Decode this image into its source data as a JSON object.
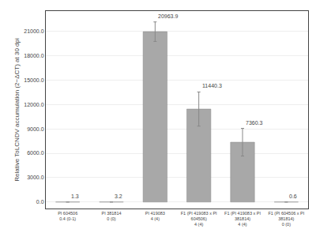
{
  "chart_data": {
    "type": "bar",
    "categories": [
      "PI 604506\n0.4 (0-1)",
      "PI 381814\n0 (0)",
      "PI 419083\n4 (4)",
      "F1 (PI 419083 x PI\n604506)\n4 (4)",
      "F1 (PI 419083 x PI\n381814)\n4 (4)",
      "F1 (PI 604506 x PI\n381814)\n0 (0)"
    ],
    "values": [
      1.3,
      3.2,
      20963.9,
      11440.3,
      7360.3,
      0.6
    ],
    "errors": [
      0.3,
      0.8,
      1200.0,
      2100.0,
      1700.0,
      0.15
    ],
    "color": "#a8a8a8",
    "ylabel": "Relative ToLCNDV accumulation (2−ΔCT) at 30 dpi",
    "ylim": [
      -800,
      23500
    ],
    "yticks": [
      {
        "value": 0,
        "label": "0.0"
      },
      {
        "value": 3000,
        "label": "3000.0"
      },
      {
        "value": 6000,
        "label": "6000.0"
      },
      {
        "value": 9000,
        "label": "9000.0"
      },
      {
        "value": 12000,
        "label": "12000.0"
      },
      {
        "value": 15000,
        "label": "15000.0"
      },
      {
        "value": 18000,
        "label": "18000.0"
      },
      {
        "value": 21000,
        "label": "21000.0"
      }
    ],
    "grid": true,
    "data_labels": true
  }
}
